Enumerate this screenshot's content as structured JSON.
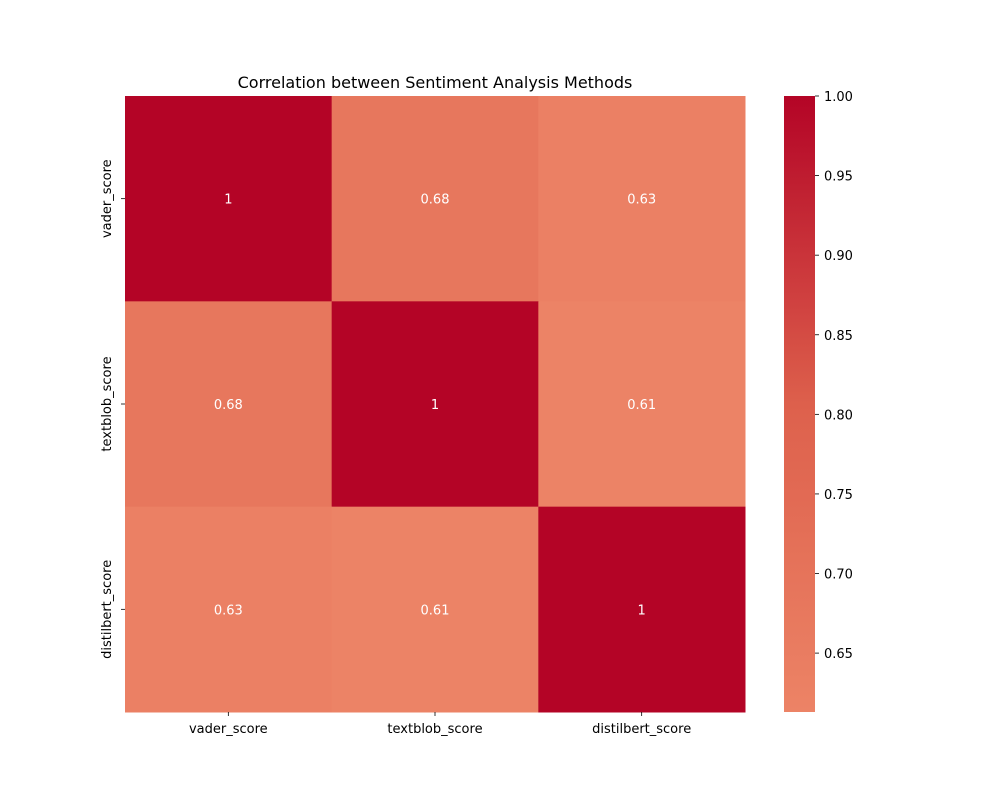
{
  "chart_data": {
    "type": "heatmap",
    "title": "Correlation between Sentiment Analysis Methods",
    "x_categories": [
      "vader_score",
      "textblob_score",
      "distilbert_score"
    ],
    "y_categories": [
      "vader_score",
      "textblob_score",
      "distilbert_score"
    ],
    "values": [
      [
        1.0,
        0.68,
        0.63
      ],
      [
        0.68,
        1.0,
        0.61
      ],
      [
        0.63,
        0.61,
        1.0
      ]
    ],
    "cell_labels": [
      [
        "1",
        "0.68",
        "0.63"
      ],
      [
        "0.68",
        "1",
        "0.61"
      ],
      [
        "0.63",
        "0.61",
        "1"
      ]
    ],
    "colorbar": {
      "min": 0.613,
      "max": 1.0,
      "ticks": [
        0.65,
        0.7,
        0.75,
        0.8,
        0.85,
        0.9,
        0.95,
        1.0
      ],
      "tick_labels": [
        "0.65",
        "0.70",
        "0.75",
        "0.80",
        "0.85",
        "0.90",
        "0.95",
        "1.00"
      ]
    },
    "colors": {
      "low": "#ec8366",
      "high": "#b40426"
    },
    "colormap": "coolwarm (upper half)",
    "annotations": true,
    "grid": false
  }
}
